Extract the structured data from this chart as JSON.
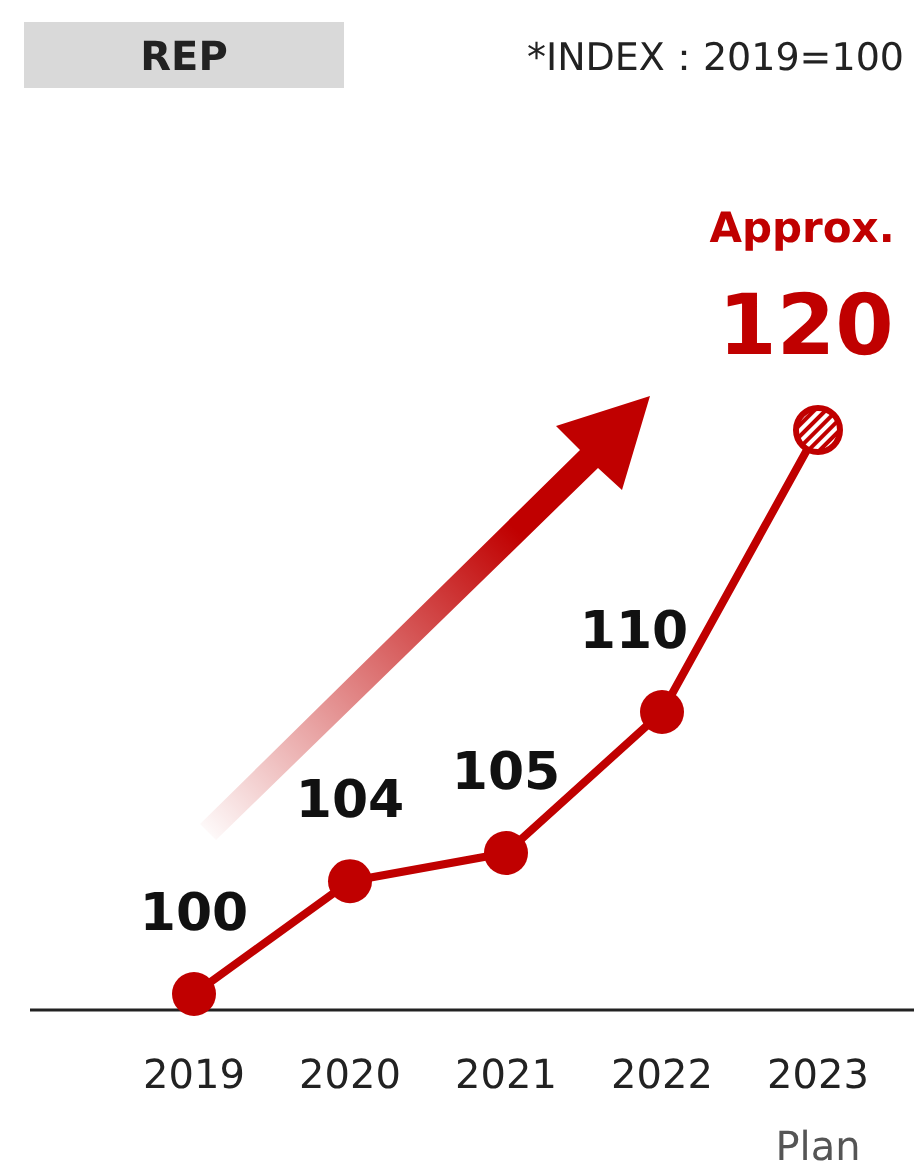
{
  "chart_data": {
    "type": "line",
    "title": "REP",
    "annotations": [
      "*INDEX：2019=100",
      "Approx."
    ],
    "categories": [
      "2019",
      "2020",
      "2021",
      "2022",
      "2023\nPlan"
    ],
    "series": [
      {
        "color": "#c00000",
        "values": [
          100,
          104,
          105,
          110,
          120
        ]
      }
    ],
    "data_labels": true,
    "marker": "circle",
    "line_style": "solid"
  }
}
